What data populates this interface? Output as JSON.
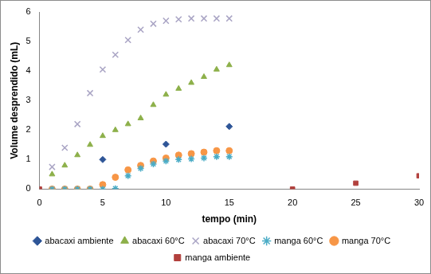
{
  "chart_data": {
    "type": "scatter",
    "x_label": "tempo (min)",
    "y_label": "Volume desprendido (mL)",
    "xlim": [
      0,
      30
    ],
    "xticks": [
      0,
      5,
      10,
      15,
      20,
      25,
      30
    ],
    "ylim": [
      0,
      6
    ],
    "yticks": [
      0,
      1,
      2,
      3,
      4,
      5,
      6
    ],
    "grid": false,
    "legend": "bottom",
    "series": [
      {
        "name": "abacaxi ambiente",
        "color": "#2e5597",
        "marker": "diamond",
        "x": [
          5,
          10,
          15
        ],
        "values": [
          1.0,
          1.52,
          2.12
        ]
      },
      {
        "name": "abacaxi 60°C",
        "color": "#8db04a",
        "marker": "triangle",
        "x": [
          1,
          2,
          3,
          4,
          5,
          6,
          7,
          8,
          9,
          10,
          11,
          12,
          13,
          14,
          15
        ],
        "values": [
          0.5,
          0.8,
          1.15,
          1.5,
          1.8,
          2.0,
          2.2,
          2.4,
          2.85,
          3.2,
          3.4,
          3.6,
          3.8,
          4.05,
          4.2
        ]
      },
      {
        "name": "abacaxi 70°C",
        "color": "#a9a4c4",
        "marker": "x",
        "x": [
          1,
          2,
          3,
          4,
          5,
          6,
          7,
          8,
          9,
          10,
          11,
          12,
          13,
          14,
          15
        ],
        "values": [
          0.75,
          1.4,
          2.2,
          3.25,
          4.05,
          4.55,
          5.05,
          5.4,
          5.6,
          5.7,
          5.75,
          5.78,
          5.78,
          5.78,
          5.78
        ]
      },
      {
        "name": "manga 60°C",
        "color": "#4bacc6",
        "marker": "star",
        "x": [
          1,
          2,
          3,
          4,
          5,
          6,
          7,
          8,
          9,
          10,
          11,
          12,
          13,
          14,
          15
        ],
        "values": [
          0,
          0,
          0,
          0,
          0,
          0.02,
          0.45,
          0.7,
          0.85,
          0.95,
          1.0,
          1.02,
          1.05,
          1.1,
          1.1
        ]
      },
      {
        "name": "manga 70°C",
        "color": "#f79646",
        "marker": "circle",
        "x": [
          1,
          2,
          3,
          4,
          5,
          6,
          7,
          8,
          9,
          10,
          11,
          12,
          13,
          14,
          15
        ],
        "values": [
          0,
          0,
          0,
          0,
          0.15,
          0.4,
          0.65,
          0.8,
          0.95,
          1.05,
          1.15,
          1.2,
          1.25,
          1.3,
          1.3
        ]
      },
      {
        "name": "manga ambiente",
        "color": "#b2403d",
        "marker": "square",
        "x": [
          0,
          20,
          25,
          30
        ],
        "values": [
          0,
          0,
          0.2,
          0.45
        ]
      }
    ]
  }
}
